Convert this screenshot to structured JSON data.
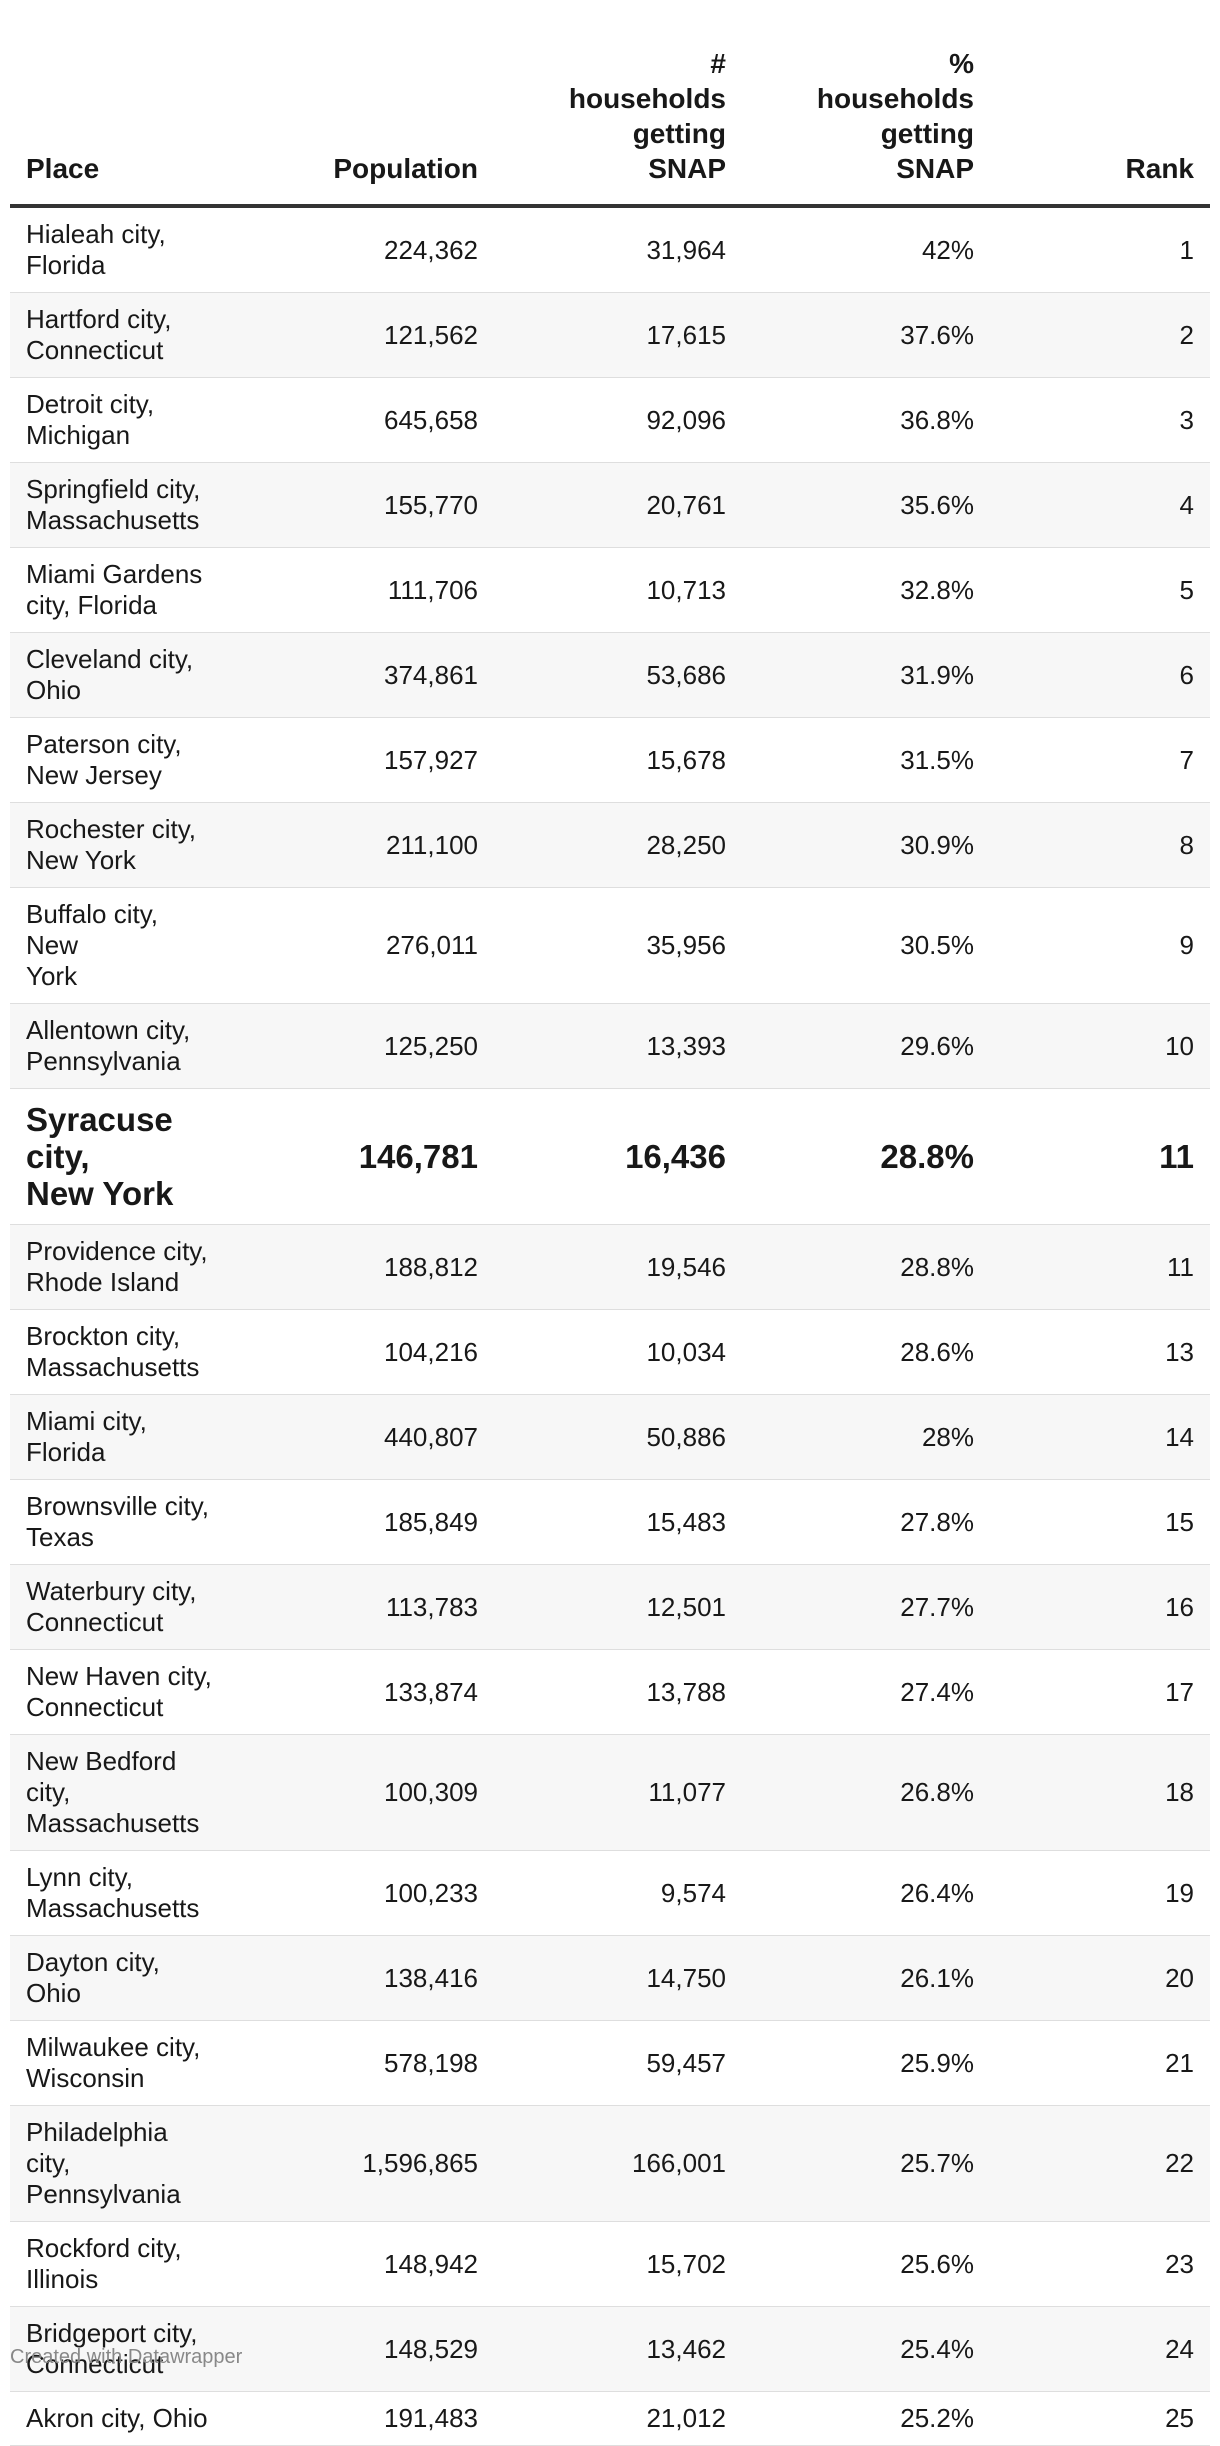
{
  "chart_data": {
    "type": "table",
    "columns": [
      {
        "key": "place",
        "label_lines": [
          "Place"
        ],
        "align": "left"
      },
      {
        "key": "population",
        "label_lines": [
          "Population"
        ],
        "align": "right"
      },
      {
        "key": "households_snap",
        "label_lines": [
          "#",
          "households",
          "getting",
          "SNAP"
        ],
        "align": "right"
      },
      {
        "key": "pct_snap",
        "label_lines": [
          "%",
          "households",
          "getting",
          "SNAP"
        ],
        "align": "right"
      },
      {
        "key": "rank",
        "label_lines": [
          "Rank"
        ],
        "align": "right"
      }
    ],
    "rows": [
      {
        "place_lines": [
          "Hialeah city,",
          "Florida"
        ],
        "population": "224,362",
        "households_snap": "31,964",
        "pct_snap": "42%",
        "rank": "1"
      },
      {
        "place_lines": [
          "Hartford city,",
          "Connecticut"
        ],
        "population": "121,562",
        "households_snap": "17,615",
        "pct_snap": "37.6%",
        "rank": "2"
      },
      {
        "place_lines": [
          "Detroit city,",
          "Michigan"
        ],
        "population": "645,658",
        "households_snap": "92,096",
        "pct_snap": "36.8%",
        "rank": "3"
      },
      {
        "place_lines": [
          "Springfield city,",
          "Massachusetts"
        ],
        "population": "155,770",
        "households_snap": "20,761",
        "pct_snap": "35.6%",
        "rank": "4"
      },
      {
        "place_lines": [
          "Miami Gardens",
          "city, Florida"
        ],
        "population": "111,706",
        "households_snap": "10,713",
        "pct_snap": "32.8%",
        "rank": "5"
      },
      {
        "place_lines": [
          "Cleveland city,",
          "Ohio"
        ],
        "population": "374,861",
        "households_snap": "53,686",
        "pct_snap": "31.9%",
        "rank": "6"
      },
      {
        "place_lines": [
          "Paterson city,",
          "New Jersey"
        ],
        "population": "157,927",
        "households_snap": "15,678",
        "pct_snap": "31.5%",
        "rank": "7"
      },
      {
        "place_lines": [
          "Rochester city,",
          "New York"
        ],
        "population": "211,100",
        "households_snap": "28,250",
        "pct_snap": "30.9%",
        "rank": "8"
      },
      {
        "place_lines": [
          "Buffalo city, New",
          "York"
        ],
        "population": "276,011",
        "households_snap": "35,956",
        "pct_snap": "30.5%",
        "rank": "9"
      },
      {
        "place_lines": [
          "Allentown city,",
          "Pennsylvania"
        ],
        "population": "125,250",
        "households_snap": "13,393",
        "pct_snap": "29.6%",
        "rank": "10"
      },
      {
        "place_lines": [
          "Syracuse city,",
          "New York"
        ],
        "population": "146,781",
        "households_snap": "16,436",
        "pct_snap": "28.8%",
        "rank": "11",
        "highlight": true
      },
      {
        "place_lines": [
          "Providence city,",
          "Rhode Island"
        ],
        "population": "188,812",
        "households_snap": "19,546",
        "pct_snap": "28.8%",
        "rank": "11"
      },
      {
        "place_lines": [
          "Brockton city,",
          "Massachusetts"
        ],
        "population": "104,216",
        "households_snap": "10,034",
        "pct_snap": "28.6%",
        "rank": "13"
      },
      {
        "place_lines": [
          "Miami city,",
          "Florida"
        ],
        "population": "440,807",
        "households_snap": "50,886",
        "pct_snap": "28%",
        "rank": "14"
      },
      {
        "place_lines": [
          "Brownsville city,",
          "Texas"
        ],
        "population": "185,849",
        "households_snap": "15,483",
        "pct_snap": "27.8%",
        "rank": "15"
      },
      {
        "place_lines": [
          "Waterbury city,",
          "Connecticut"
        ],
        "population": "113,783",
        "households_snap": "12,501",
        "pct_snap": "27.7%",
        "rank": "16"
      },
      {
        "place_lines": [
          "New Haven city,",
          "Connecticut"
        ],
        "population": "133,874",
        "households_snap": "13,788",
        "pct_snap": "27.4%",
        "rank": "17"
      },
      {
        "place_lines": [
          "New Bedford city,",
          "Massachusetts"
        ],
        "population": "100,309",
        "households_snap": "11,077",
        "pct_snap": "26.8%",
        "rank": "18"
      },
      {
        "place_lines": [
          "Lynn city,",
          "Massachusetts"
        ],
        "population": "100,233",
        "households_snap": "9,574",
        "pct_snap": "26.4%",
        "rank": "19"
      },
      {
        "place_lines": [
          "Dayton city, Ohio"
        ],
        "population": "138,416",
        "households_snap": "14,750",
        "pct_snap": "26.1%",
        "rank": "20"
      },
      {
        "place_lines": [
          "Milwaukee city,",
          "Wisconsin"
        ],
        "population": "578,198",
        "households_snap": "59,457",
        "pct_snap": "25.9%",
        "rank": "21"
      },
      {
        "place_lines": [
          "Philadelphia city,",
          "Pennsylvania"
        ],
        "population": "1,596,865",
        "households_snap": "166,001",
        "pct_snap": "25.7%",
        "rank": "22"
      },
      {
        "place_lines": [
          "Rockford city,",
          "Illinois"
        ],
        "population": "148,942",
        "households_snap": "15,702",
        "pct_snap": "25.6%",
        "rank": "23"
      },
      {
        "place_lines": [
          "Bridgeport city,",
          "Connecticut"
        ],
        "population": "148,529",
        "households_snap": "13,462",
        "pct_snap": "25.4%",
        "rank": "24"
      },
      {
        "place_lines": [
          "Akron city, Ohio"
        ],
        "population": "191,483",
        "households_snap": "21,012",
        "pct_snap": "25.2%",
        "rank": "25"
      }
    ]
  },
  "footer": {
    "credit": "Created with Datawrapper"
  },
  "colors": {
    "text": "#181818",
    "rule": "#333333",
    "row_alt": "#f7f7f7",
    "footer": "#888888"
  }
}
